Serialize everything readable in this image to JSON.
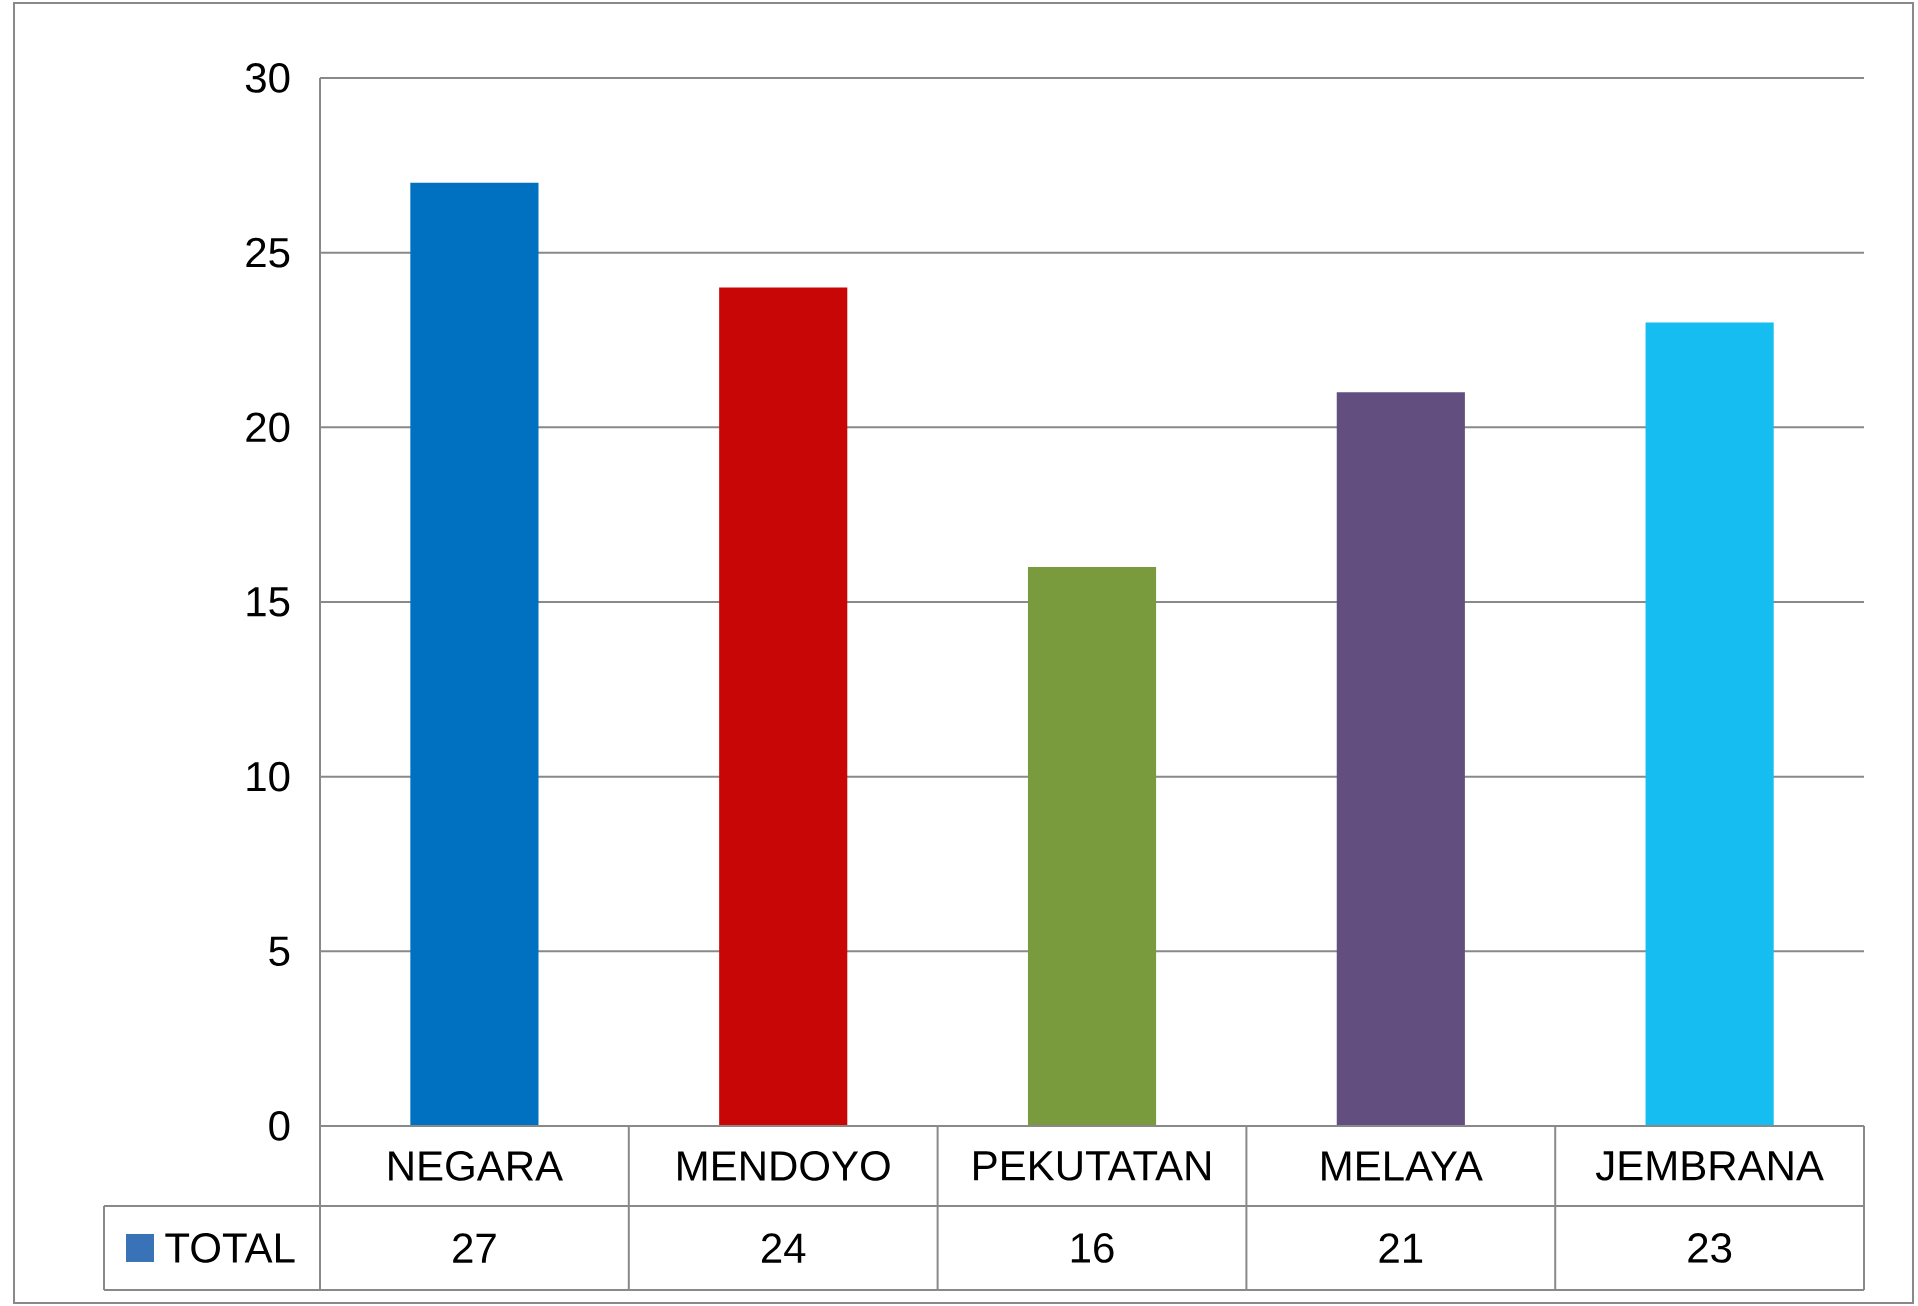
{
  "chart_data": {
    "type": "bar",
    "categories": [
      "NEGARA",
      "MENDOYO",
      "PEKUTATAN",
      "MELAYA",
      "JEMBRANA"
    ],
    "series": [
      {
        "name": "TOTAL",
        "color": "#3a72b8",
        "colors": [
          "#0070c0",
          "#c80606",
          "#7a9a3e",
          "#634e80",
          "#16bdf0"
        ],
        "values": [
          27,
          24,
          16,
          21,
          23
        ]
      }
    ],
    "ylim": [
      0,
      30
    ],
    "yticks": [
      0,
      5,
      10,
      15,
      20,
      25,
      30
    ],
    "grid": "y",
    "data_labels": true
  }
}
